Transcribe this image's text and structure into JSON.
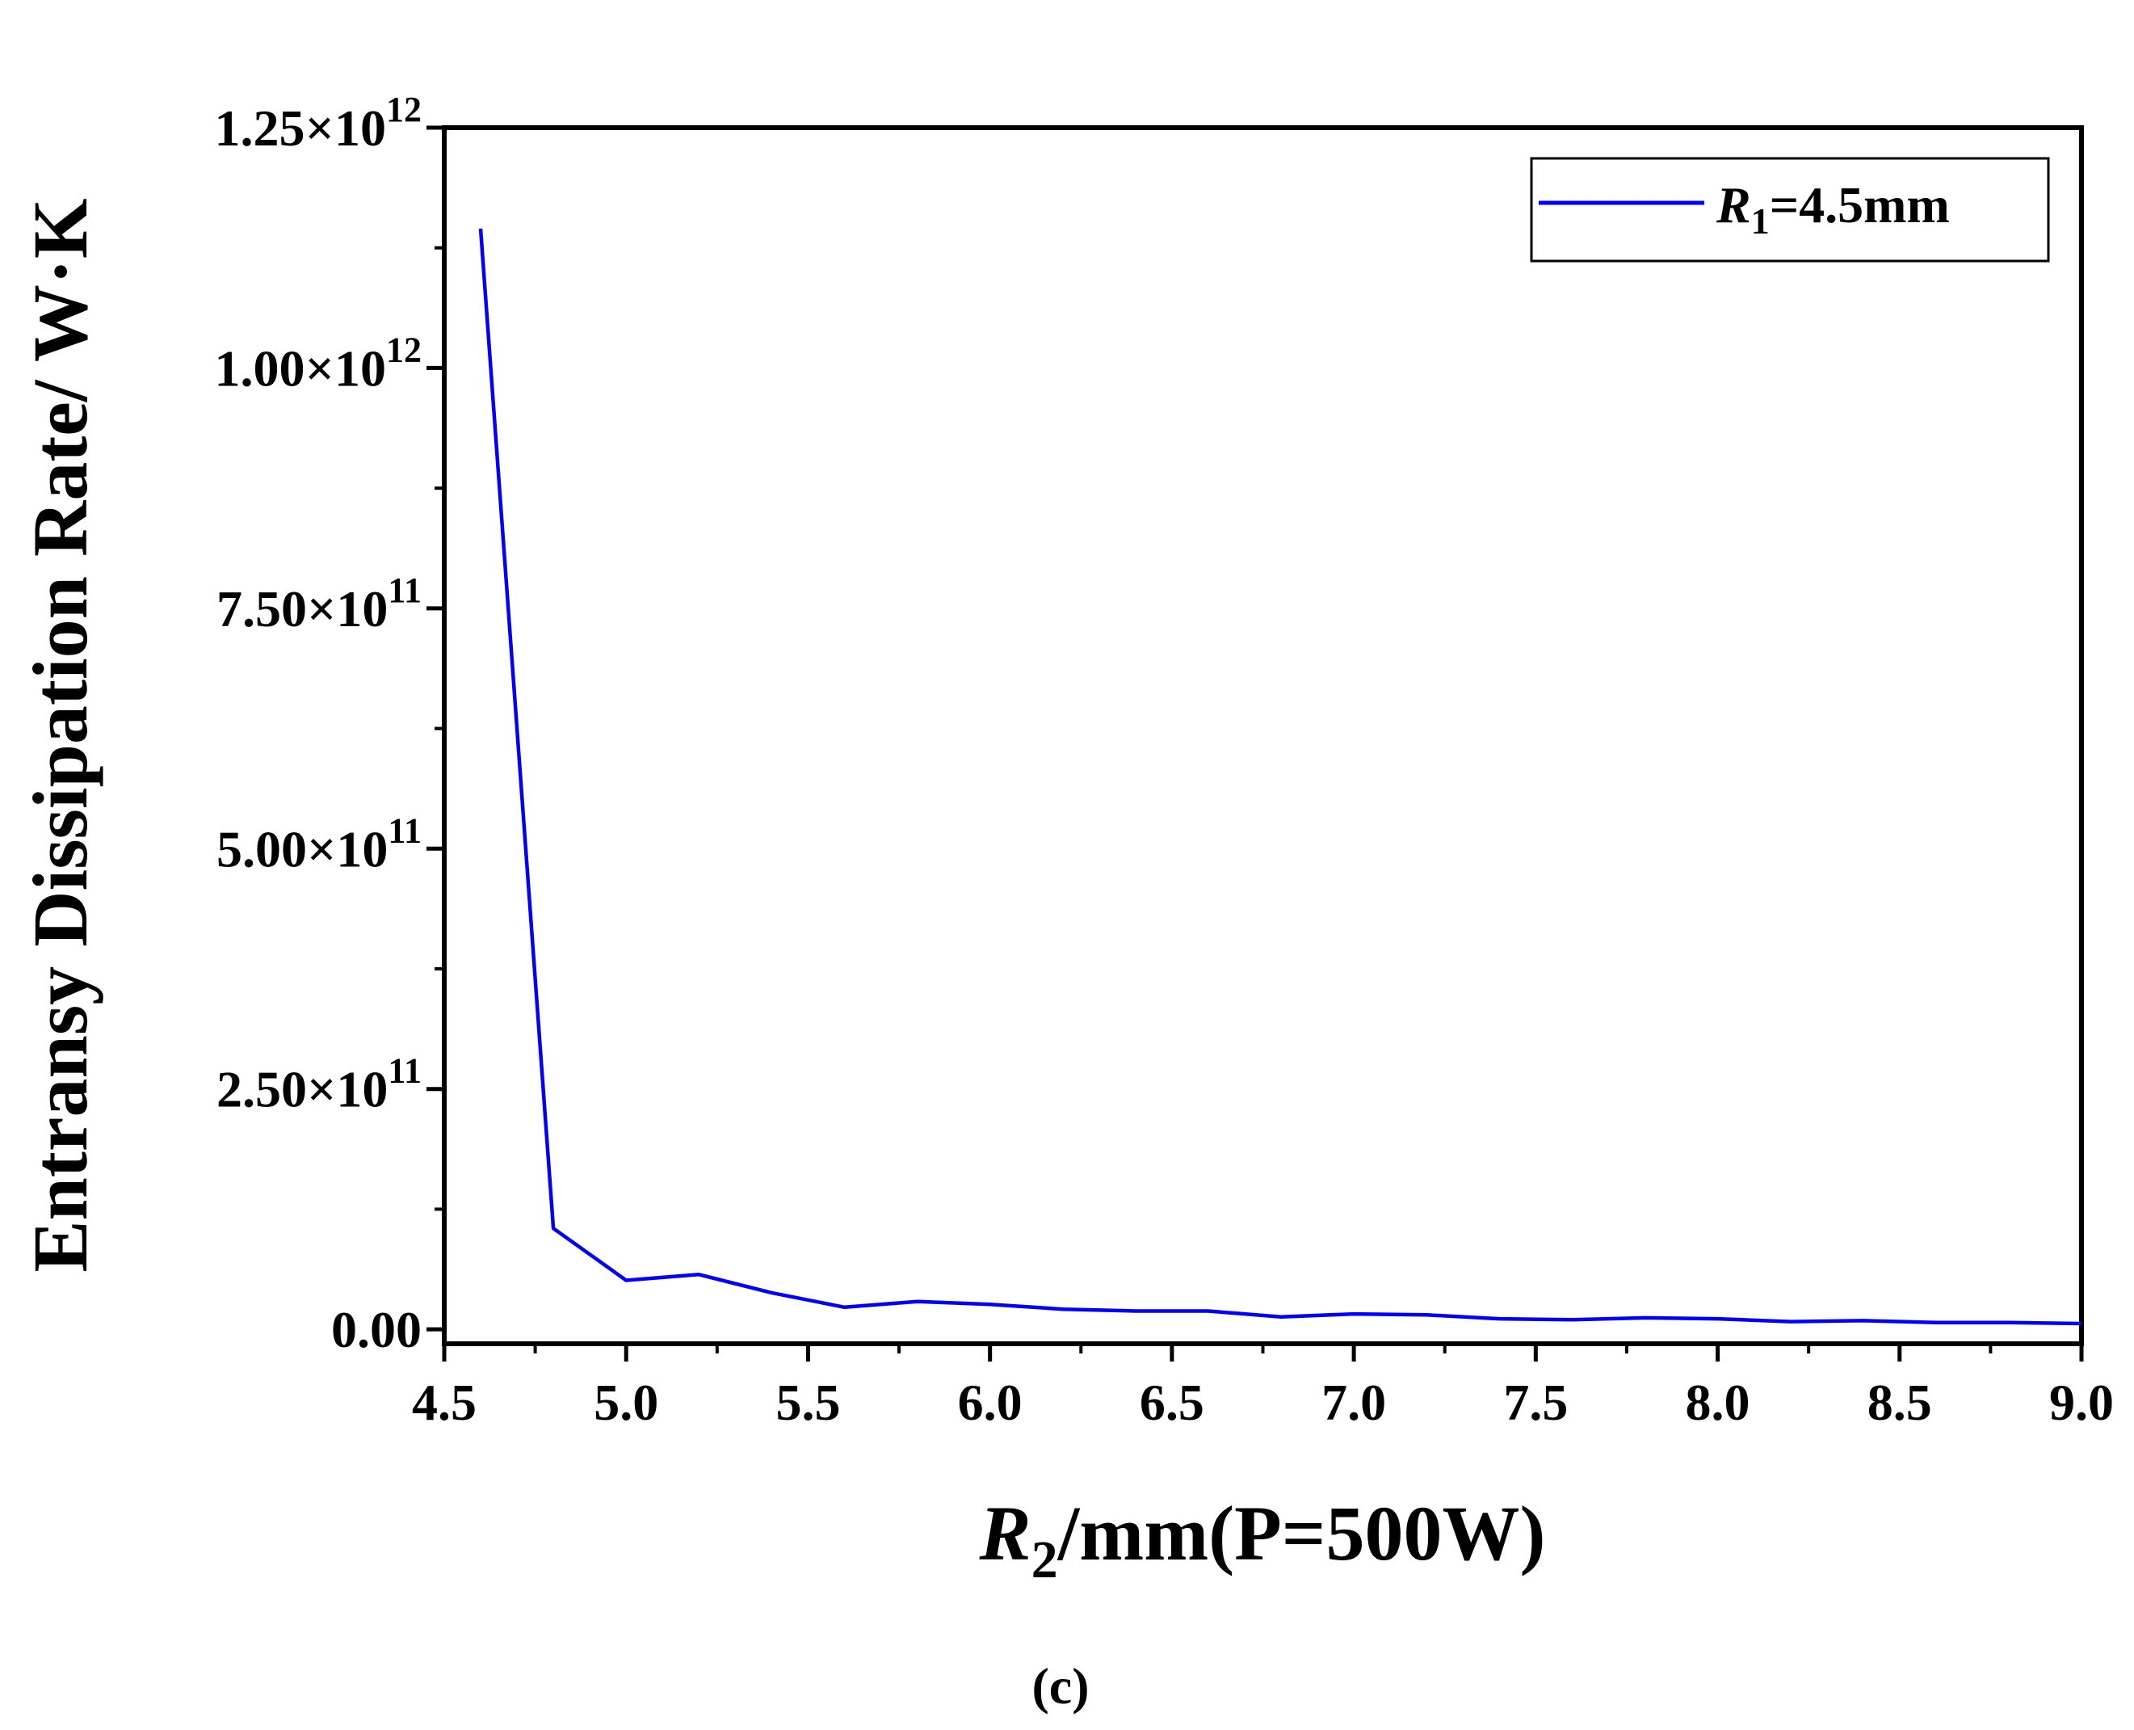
{
  "chart_data": {
    "type": "line",
    "caption": "(c)",
    "xlabel": {
      "italic": "R",
      "sub": "2",
      "rest": "/mm(P=500W)"
    },
    "ylabel": "Entransy Dissipation Rate/ W·K",
    "xlim": [
      4.5,
      9.0
    ],
    "ylim": [
      -15000000000.0,
      1250000000000.0
    ],
    "x_ticks": [
      4.5,
      5.0,
      5.5,
      6.0,
      6.5,
      7.0,
      7.5,
      8.0,
      8.5,
      9.0
    ],
    "x_tick_labels": [
      "4.5",
      "5.0",
      "5.5",
      "6.0",
      "6.5",
      "7.0",
      "7.5",
      "8.0",
      "8.5",
      "9.0"
    ],
    "y_ticks": [
      0,
      250000000000.0,
      500000000000.0,
      750000000000.0,
      1000000000000.0,
      1250000000000.0
    ],
    "y_tick_labels": [
      {
        "mantissa": "0.00",
        "exp": ""
      },
      {
        "mantissa": "2.50×10",
        "exp": "11"
      },
      {
        "mantissa": "5.00×10",
        "exp": "11"
      },
      {
        "mantissa": "7.50×10",
        "exp": "11"
      },
      {
        "mantissa": "1.00×10",
        "exp": "12"
      },
      {
        "mantissa": "1.25×10",
        "exp": "12"
      }
    ],
    "legend": {
      "position": "top-right",
      "entries": [
        {
          "italic": "R",
          "sub": "1",
          "rest": "=4.5mm",
          "color": "#0000ff"
        }
      ]
    },
    "series": [
      {
        "name": "R1=4.5mm",
        "color": "#0000ff",
        "x": [
          4.6,
          4.8,
          5.0,
          5.2,
          5.4,
          5.6,
          5.8,
          6.0,
          6.2,
          6.4,
          6.6,
          6.8,
          7.0,
          7.2,
          7.4,
          7.6,
          7.8,
          8.0,
          8.2,
          8.4,
          8.6,
          8.8,
          9.0
        ],
        "y": [
          1145000000000.0,
          105000000000.0,
          51000000000.0,
          57000000000.0,
          38000000000.0,
          23000000000.0,
          29000000000.0,
          26000000000.0,
          21000000000.0,
          19000000000.0,
          19000000000.0,
          13000000000.0,
          16000000000.0,
          15000000000.0,
          11000000000.0,
          10000000000.0,
          12000000000.0,
          11000000000.0,
          8000000000.0,
          9000000000.0,
          7000000000.0,
          7000000000.0,
          6000000000.0
        ]
      }
    ]
  }
}
